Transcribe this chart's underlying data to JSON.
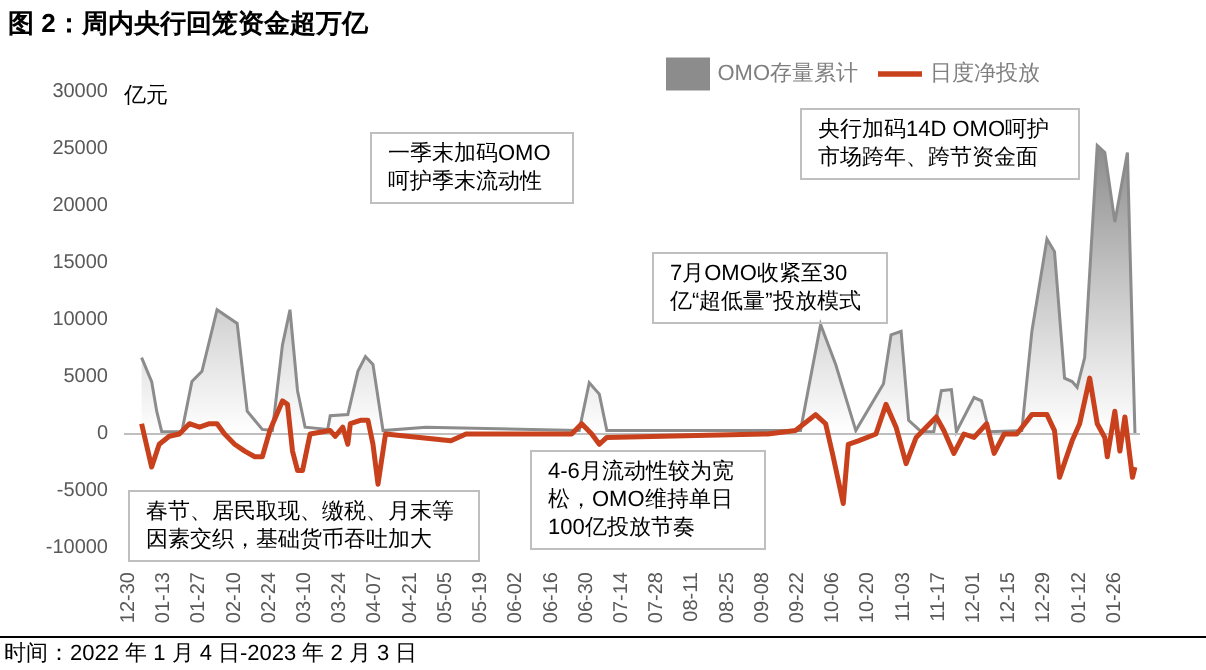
{
  "chart_data": {
    "type": "line",
    "title": "图 2：周内央行回笼资金超万亿",
    "ylabel": "亿元",
    "annotations": [
      "一季末加码OMO呵护季末流动性",
      "春节、居民取现、缴税、月末等因素交织，基础货币吞吐加大",
      "4-6月流动性较为宽松，OMO维持单日100亿投放节奏",
      "7月OMO收紧至30亿“超低量”投放模式",
      "央行加码14D OMO呵护市场跨年、跨节资金面",
      "时间：2022 年 1 月 4 日-2023 年 2 月 3 日"
    ],
    "series": [
      {
        "name": "OMO存量累计",
        "type": "area",
        "color": "#8c8c8c",
        "x": [
          "2022-01-04",
          "2022-01-08",
          "2022-01-10",
          "2022-01-12",
          "2022-01-20",
          "2022-01-24",
          "2022-01-28",
          "2022-02-03",
          "2022-02-11",
          "2022-02-15",
          "2022-02-21",
          "2022-02-25",
          "2022-03-01",
          "2022-03-04",
          "2022-03-07",
          "2022-03-10",
          "2022-03-19",
          "2022-03-20",
          "2022-03-27",
          "2022-03-31",
          "2022-04-03",
          "2022-04-06",
          "2022-04-10",
          "2022-04-27",
          "2022-06-27",
          "2022-07-01",
          "2022-07-05",
          "2022-07-08",
          "2022-09-23",
          "2022-10-01",
          "2022-10-07",
          "2022-10-15",
          "2022-10-26",
          "2022-10-29",
          "2022-11-02",
          "2022-11-05",
          "2022-11-10",
          "2022-11-15",
          "2022-11-18",
          "2022-11-22",
          "2022-11-24",
          "2022-12-01",
          "2022-12-04",
          "2022-12-07",
          "2022-12-20",
          "2022-12-24",
          "2022-12-30",
          "2023-01-02",
          "2023-01-06",
          "2023-01-09",
          "2023-01-11",
          "2023-01-14",
          "2023-01-19",
          "2023-01-22",
          "2023-01-26",
          "2023-01-31",
          "2023-02-03"
        ],
        "values": [
          6700,
          4600,
          2000,
          200,
          200,
          4600,
          5500,
          10900,
          9700,
          2000,
          400,
          300,
          7800,
          10900,
          3800,
          600,
          400,
          1600,
          1700,
          5500,
          6800,
          6100,
          300,
          600,
          300,
          4500,
          3500,
          300,
          300,
          9600,
          6100,
          300,
          4400,
          8700,
          9000,
          1200,
          200,
          200,
          3800,
          3900,
          200,
          3200,
          2900,
          200,
          300,
          9000,
          17100,
          16000,
          4900,
          4600,
          4100,
          6700,
          25300,
          24700,
          18600,
          24700,
          0
        ]
      },
      {
        "name": "日度净投放",
        "color": "#c9401c",
        "x": [
          "2022-01-04",
          "2022-01-08",
          "2022-01-11",
          "2022-01-15",
          "2022-01-19",
          "2022-01-23",
          "2022-01-27",
          "2022-01-31",
          "2022-02-03",
          "2022-02-06",
          "2022-02-10",
          "2022-02-14",
          "2022-02-18",
          "2022-02-21",
          "2022-02-24",
          "2022-03-01",
          "2022-03-03",
          "2022-03-05",
          "2022-03-07",
          "2022-03-09",
          "2022-03-12",
          "2022-03-20",
          "2022-03-22",
          "2022-03-25",
          "2022-03-27",
          "2022-03-28",
          "2022-04-01",
          "2022-04-04",
          "2022-04-06",
          "2022-04-08",
          "2022-04-11",
          "2022-05-07",
          "2022-05-13",
          "2022-06-24",
          "2022-06-28",
          "2022-07-02",
          "2022-07-05",
          "2022-07-08",
          "2022-09-10",
          "2022-09-21",
          "2022-09-29",
          "2022-10-03",
          "2022-10-06",
          "2022-10-10",
          "2022-10-12",
          "2022-10-16",
          "2022-10-23",
          "2022-10-27",
          "2022-10-31",
          "2022-11-04",
          "2022-11-08",
          "2022-11-16",
          "2022-11-19",
          "2022-11-23",
          "2022-11-27",
          "2022-12-01",
          "2022-12-06",
          "2022-12-09",
          "2022-12-13",
          "2022-12-18",
          "2022-12-24",
          "2022-12-30",
          "2023-01-02",
          "2023-01-04",
          "2023-01-09",
          "2023-01-12",
          "2023-01-16",
          "2023-01-19",
          "2023-01-22",
          "2023-01-23",
          "2023-01-26",
          "2023-01-28",
          "2023-01-30",
          "2023-02-02",
          "2023-02-03"
        ],
        "values": [
          900,
          -2900,
          -900,
          -200,
          0,
          900,
          600,
          900,
          900,
          0,
          -900,
          -1500,
          -2000,
          -2000,
          300,
          2900,
          2600,
          -1500,
          -3200,
          -3200,
          0,
          300,
          -200,
          600,
          -900,
          900,
          1200,
          1200,
          -900,
          -4400,
          0,
          -600,
          0,
          0,
          900,
          0,
          -900,
          -300,
          0,
          300,
          1700,
          900,
          -2000,
          -6100,
          -900,
          -600,
          0,
          2600,
          600,
          -2600,
          -300,
          1500,
          300,
          -1700,
          0,
          -300,
          900,
          -1700,
          0,
          0,
          1700,
          1700,
          300,
          -3800,
          -600,
          900,
          4900,
          900,
          -300,
          -2000,
          2000,
          -1500,
          1500,
          -3800,
          -2900
        ]
      }
    ],
    "xlim": [
      "2021-12-28",
      "2023-02-05"
    ],
    "xticks": [
      {
        "value": "2021-12-30",
        "label": "12-30"
      },
      {
        "value": "2022-01-13",
        "label": "01-13"
      },
      {
        "value": "2022-01-27",
        "label": "01-27"
      },
      {
        "value": "2022-02-10",
        "label": "02-10"
      },
      {
        "value": "2022-02-24",
        "label": "02-24"
      },
      {
        "value": "2022-03-10",
        "label": "03-10"
      },
      {
        "value": "2022-03-24",
        "label": "03-24"
      },
      {
        "value": "2022-04-07",
        "label": "04-07"
      },
      {
        "value": "2022-04-21",
        "label": "04-21"
      },
      {
        "value": "2022-05-05",
        "label": "05-05"
      },
      {
        "value": "2022-05-19",
        "label": "05-19"
      },
      {
        "value": "2022-06-02",
        "label": "06-02"
      },
      {
        "value": "2022-06-16",
        "label": "06-16"
      },
      {
        "value": "2022-06-30",
        "label": "06-30"
      },
      {
        "value": "2022-07-14",
        "label": "07-14"
      },
      {
        "value": "2022-07-28",
        "label": "07-28"
      },
      {
        "value": "2022-08-11",
        "label": "08-11"
      },
      {
        "value": "2022-08-25",
        "label": "08-25"
      },
      {
        "value": "2022-09-08",
        "label": "09-08"
      },
      {
        "value": "2022-09-22",
        "label": "09-22"
      },
      {
        "value": "2022-10-06",
        "label": "10-06"
      },
      {
        "value": "2022-10-20",
        "label": "10-20"
      },
      {
        "value": "2022-11-03",
        "label": "11-03"
      },
      {
        "value": "2022-11-17",
        "label": "11-17"
      },
      {
        "value": "2022-12-01",
        "label": "12-01"
      },
      {
        "value": "2022-12-15",
        "label": "12-15"
      },
      {
        "value": "2022-12-29",
        "label": "12-29"
      },
      {
        "value": "2023-01-12",
        "label": "01-12"
      },
      {
        "value": "2023-01-26",
        "label": "01-26"
      }
    ],
    "ylim": [
      -10000,
      30000
    ],
    "yticks": [
      -10000,
      -5000,
      0,
      5000,
      10000,
      15000,
      20000,
      25000,
      30000
    ],
    "ref_lines": [
      {
        "axis": "y",
        "value": 0,
        "color": "#bfbfbf"
      }
    ],
    "legend": "top right",
    "grid": false
  }
}
